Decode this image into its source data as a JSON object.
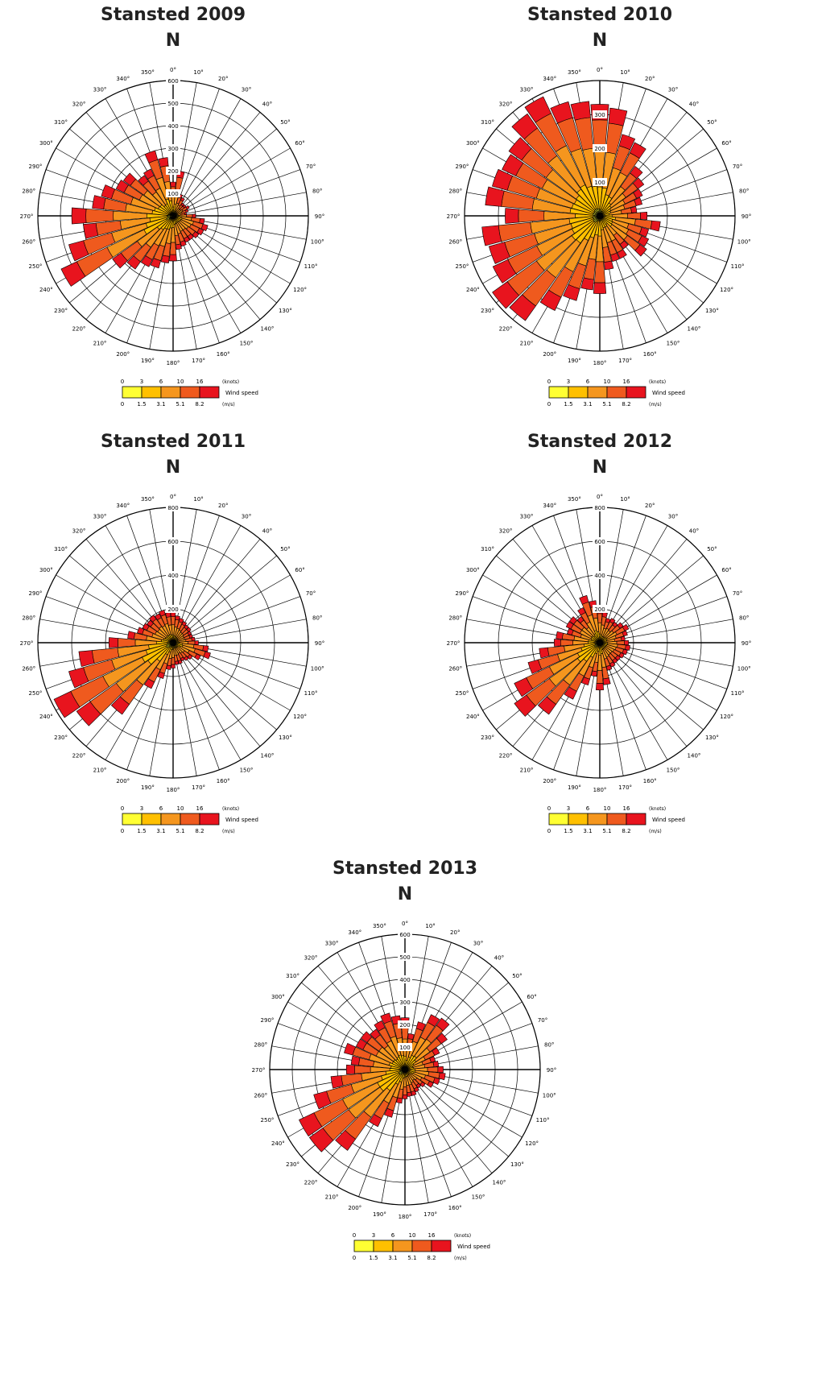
{
  "common": {
    "north_label": "N",
    "direction_labels": [
      "0°",
      "10°",
      "20°",
      "30°",
      "40°",
      "50°",
      "60°",
      "70°",
      "80°",
      "90°",
      "100°",
      "110°",
      "120°",
      "130°",
      "140°",
      "150°",
      "160°",
      "170°",
      "180°",
      "190°",
      "200°",
      "210°",
      "220°",
      "230°",
      "240°",
      "250°",
      "260°",
      "270°",
      "280°",
      "290°",
      "300°",
      "310°",
      "320°",
      "330°",
      "340°",
      "350°"
    ],
    "legend": {
      "knots_ticks": [
        "0",
        "3",
        "6",
        "10",
        "16"
      ],
      "knots_unit": "(knots)",
      "ms_ticks": [
        "0",
        "1.5",
        "3.1",
        "5.1",
        "8.2"
      ],
      "ms_unit": "(m/s)",
      "label": "Wind speed",
      "colors": [
        "#ffff33",
        "#ffc000",
        "#f5961e",
        "#ef5a1e",
        "#e8141e"
      ]
    }
  },
  "chart_data": [
    {
      "type": "polar-bar",
      "title": "Stansted 2009",
      "rmax": 600,
      "radial_ticks": [
        100,
        200,
        300,
        400,
        500,
        600
      ],
      "radial_ticks_shown": [
        100,
        200,
        300,
        400,
        500,
        600
      ],
      "directions": [
        0,
        10,
        20,
        30,
        40,
        50,
        60,
        70,
        80,
        90,
        100,
        110,
        120,
        130,
        140,
        150,
        160,
        170,
        180,
        190,
        200,
        210,
        220,
        230,
        240,
        250,
        260,
        270,
        280,
        290,
        300,
        310,
        320,
        330,
        340,
        350
      ],
      "totals": [
        150,
        200,
        100,
        90,
        70,
        70,
        80,
        70,
        60,
        100,
        140,
        160,
        150,
        140,
        130,
        130,
        140,
        150,
        200,
        210,
        240,
        250,
        290,
        330,
        550,
        480,
        400,
        450,
        360,
        330,
        280,
        270,
        220,
        230,
        300,
        260
      ]
    },
    {
      "type": "polar-bar",
      "title": "Stansted 2010",
      "rmax": 400,
      "radial_ticks": [
        100,
        200,
        300,
        400
      ],
      "radial_ticks_shown": [
        100,
        200,
        300
      ],
      "directions": [
        0,
        10,
        20,
        30,
        40,
        50,
        60,
        70,
        80,
        90,
        100,
        110,
        120,
        130,
        140,
        150,
        160,
        170,
        180,
        190,
        200,
        210,
        220,
        230,
        240,
        250,
        260,
        270,
        280,
        290,
        300,
        310,
        320,
        330,
        340,
        350
      ],
      "totals": [
        330,
        320,
        250,
        240,
        180,
        160,
        140,
        130,
        110,
        140,
        180,
        150,
        160,
        170,
        120,
        140,
        140,
        160,
        230,
        220,
        260,
        310,
        380,
        390,
        350,
        340,
        350,
        280,
        340,
        330,
        320,
        330,
        370,
        390,
        350,
        340
      ]
    },
    {
      "type": "polar-bar",
      "title": "Stansted 2011",
      "rmax": 800,
      "radial_ticks": [
        200,
        400,
        600,
        800
      ],
      "radial_ticks_shown": [
        200,
        400,
        600,
        800
      ],
      "directions": [
        0,
        10,
        20,
        30,
        40,
        50,
        60,
        70,
        80,
        90,
        100,
        110,
        120,
        130,
        140,
        150,
        160,
        170,
        180,
        190,
        200,
        210,
        220,
        230,
        240,
        250,
        260,
        270,
        280,
        290,
        300,
        310,
        320,
        330,
        340,
        350
      ],
      "totals": [
        180,
        160,
        150,
        140,
        130,
        130,
        120,
        120,
        130,
        150,
        210,
        230,
        180,
        140,
        130,
        120,
        130,
        130,
        150,
        160,
        220,
        300,
        520,
        700,
        780,
        640,
        560,
        380,
        270,
        220,
        200,
        190,
        200,
        190,
        200,
        180
      ]
    },
    {
      "type": "polar-bar",
      "title": "Stansted 2012",
      "rmax": 800,
      "radial_ticks": [
        200,
        400,
        600,
        800
      ],
      "radial_ticks_shown": [
        200,
        400,
        600,
        800
      ],
      "directions": [
        0,
        10,
        20,
        30,
        40,
        50,
        60,
        70,
        80,
        90,
        100,
        110,
        120,
        130,
        140,
        150,
        160,
        170,
        180,
        190,
        200,
        210,
        220,
        230,
        240,
        250,
        260,
        270,
        280,
        290,
        300,
        310,
        320,
        330,
        340,
        350
      ],
      "totals": [
        200,
        180,
        150,
        160,
        150,
        170,
        190,
        170,
        150,
        170,
        180,
        170,
        160,
        150,
        150,
        160,
        170,
        250,
        280,
        200,
        260,
        370,
        520,
        620,
        560,
        440,
        360,
        270,
        260,
        200,
        220,
        220,
        190,
        230,
        290,
        250
      ]
    },
    {
      "type": "polar-bar",
      "title": "Stansted 2013",
      "rmax": 600,
      "radial_ticks": [
        100,
        200,
        300,
        400,
        500,
        600
      ],
      "radial_ticks_shown": [
        100,
        200,
        300,
        400,
        500,
        600
      ],
      "directions": [
        0,
        10,
        20,
        30,
        40,
        50,
        60,
        70,
        80,
        90,
        100,
        110,
        120,
        130,
        140,
        150,
        160,
        170,
        180,
        190,
        200,
        210,
        220,
        230,
        240,
        250,
        260,
        270,
        280,
        290,
        300,
        310,
        320,
        330,
        340,
        350
      ],
      "totals": [
        230,
        160,
        220,
        270,
        280,
        230,
        170,
        140,
        150,
        170,
        180,
        160,
        140,
        110,
        100,
        110,
        120,
        120,
        130,
        150,
        220,
        280,
        440,
        520,
        520,
        420,
        330,
        260,
        240,
        280,
        240,
        240,
        220,
        240,
        260,
        240
      ]
    }
  ]
}
